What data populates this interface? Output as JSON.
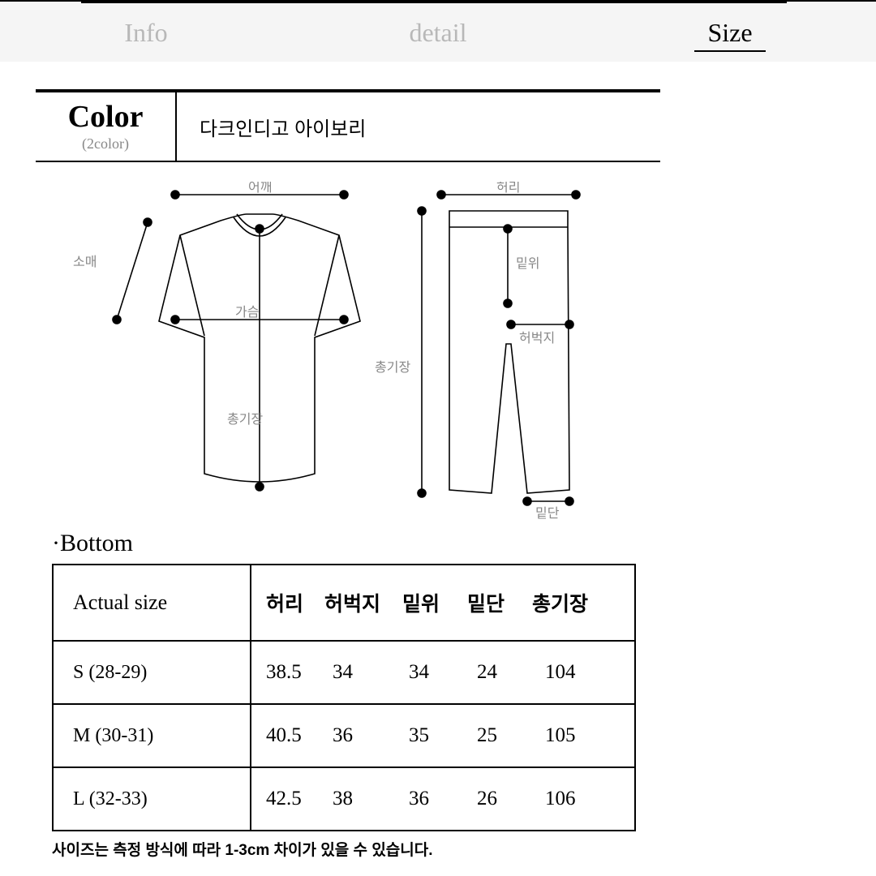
{
  "tabs": {
    "info": "Info",
    "detail": "detail",
    "size": "Size"
  },
  "color_block": {
    "title": "Color",
    "sub": "(2color)",
    "values": "다크인디고  아이보리"
  },
  "diagram": {
    "shirt": {
      "shoulder": "어깨",
      "sleeve": "소매",
      "chest": "가슴",
      "length": "총기장"
    },
    "pants": {
      "waist": "허리",
      "rise": "밑위",
      "thigh": "허벅지",
      "length": "총기장",
      "hem": "밑단"
    },
    "stroke": "#000000",
    "label_color": "#888888"
  },
  "bottom_heading": "·Bottom",
  "table": {
    "header_first": "Actual size",
    "columns": [
      "허리",
      "허벅지",
      "밑위",
      "밑단",
      "총기장"
    ],
    "rows": [
      {
        "label": "S (28-29)",
        "values": [
          "38.5",
          "34",
          "34",
          "24",
          "104"
        ]
      },
      {
        "label": "M (30-31)",
        "values": [
          "40.5",
          "36",
          "35",
          "25",
          "105"
        ]
      },
      {
        "label": "L (32-33)",
        "values": [
          "42.5",
          "38",
          "36",
          "26",
          "106"
        ]
      }
    ]
  },
  "footnote": "사이즈는 측정 방식에 따라 1-3cm 차이가 있을 수 있습니다."
}
